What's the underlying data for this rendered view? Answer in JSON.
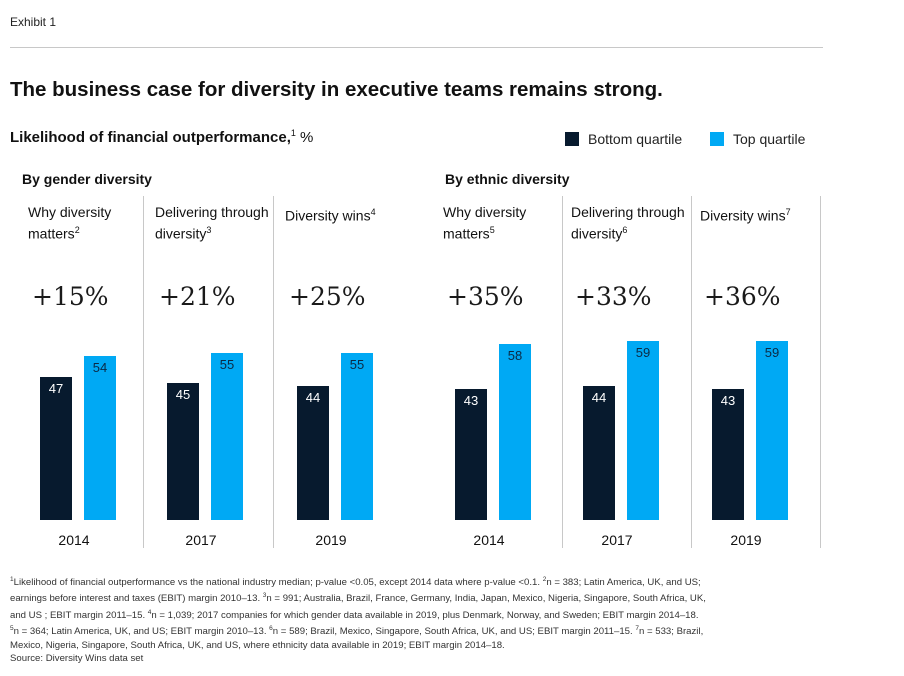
{
  "exhibit_label": "Exhibit 1",
  "title": "The business case for diversity in executive teams remains strong.",
  "subtitle": {
    "main": "Likelihood of financial outperformance,",
    "note": "1",
    "unit": " %"
  },
  "legend": [
    {
      "label": "Bottom quartile",
      "color": "#071a2e"
    },
    {
      "label": "Top quartile",
      "color": "#00a9f4"
    }
  ],
  "chart_data": {
    "type": "bar",
    "title": "The business case for diversity in executive teams remains strong.",
    "ylabel": "Likelihood of financial outperformance, %",
    "series_names": [
      "Bottom quartile",
      "Top quartile"
    ],
    "groups": [
      {
        "name": "By gender diversity",
        "panels": [
          {
            "label": "Why diversity matters",
            "note": "2",
            "year": "2014",
            "delta": "+15%",
            "bottom": 47,
            "top": 54
          },
          {
            "label": "Delivering through diversity",
            "note": "3",
            "year": "2017",
            "delta": "+21%",
            "bottom": 45,
            "top": 55
          },
          {
            "label": "Diversity wins",
            "note": "4",
            "year": "2019",
            "delta": "+25%",
            "bottom": 44,
            "top": 55
          }
        ]
      },
      {
        "name": "By ethnic diversity",
        "panels": [
          {
            "label": "Why diversity matters",
            "note": "5",
            "year": "2014",
            "delta": "+35%",
            "bottom": 43,
            "top": 58
          },
          {
            "label": "Delivering through diversity",
            "note": "6",
            "year": "2017",
            "delta": "+33%",
            "bottom": 44,
            "top": 59
          },
          {
            "label": "Diversity wins",
            "note": "7",
            "year": "2019",
            "delta": "+36%",
            "bottom": 43,
            "top": 59
          }
        ]
      }
    ]
  },
  "footnotes": {
    "lines": [
      "Likelihood of financial outperformance vs the national industry median; p-value <0.05, except 2014 data where p-value <0.1.",
      "n = 383; Latin America, UK, and US;",
      "earnings before interest and taxes (EBIT) margin 2010–13.",
      "n = 991; Australia, Brazil, France, Germany, India, Japan, Mexico, Nigeria, Singapore, South Africa, UK,",
      "and US ; EBIT margin 2011–15.",
      "n = 1,039; 2017 companies for which gender data available in 2019, plus Denmark, Norway, and Sweden; EBIT margin 2014–18.",
      "n = 364; Latin America, UK, and US; EBIT margin 2010–13.",
      "n = 589; Brazil, Mexico, Singapore, South Africa, UK, and US; EBIT margin 2011–15.",
      "n = 533; Brazil,",
      "Mexico, Nigeria, Singapore, South Africa, UK, and US, where ethnicity data available in 2019; EBIT margin 2014–18."
    ],
    "source": "Source: Diversity Wins data set"
  }
}
